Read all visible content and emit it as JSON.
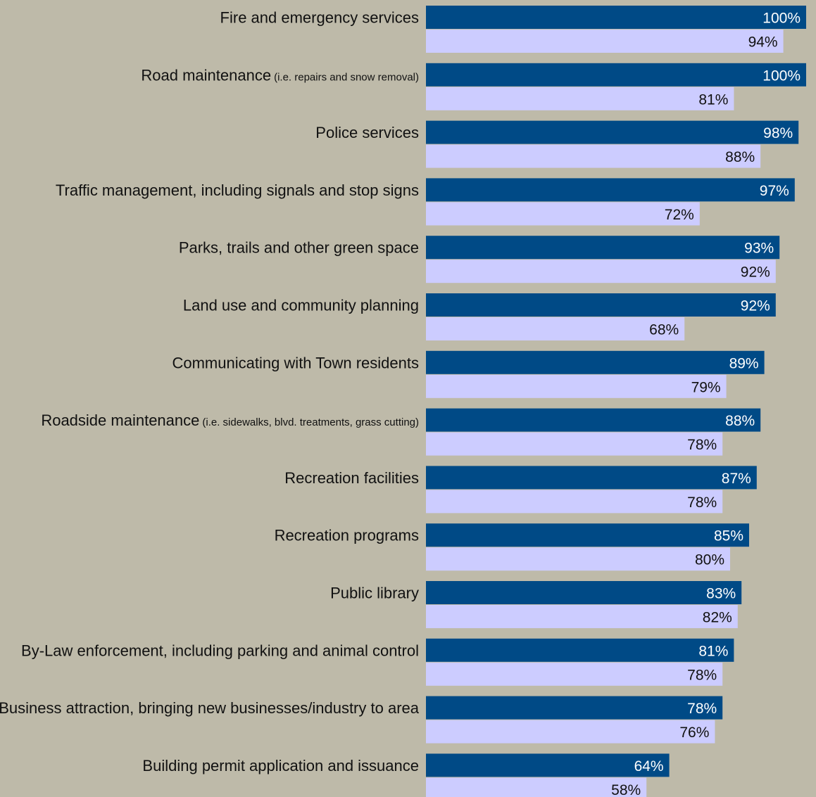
{
  "chart_data": {
    "type": "bar",
    "orientation": "horizontal",
    "title": "",
    "xlabel": "",
    "ylabel": "",
    "xlim": [
      0,
      100
    ],
    "grid": false,
    "legend": "none",
    "value_suffix": "%",
    "categories": [
      {
        "label": "Fire  and emergency services",
        "sub": ""
      },
      {
        "label": "Road maintenance",
        "sub": "(i.e. repairs and snow removal)"
      },
      {
        "label": "Police services",
        "sub": ""
      },
      {
        "label": "Traffic management, including signals and stop signs",
        "sub": ""
      },
      {
        "label": "Parks, trails and other  green space",
        "sub": ""
      },
      {
        "label": "Land use and community planning",
        "sub": ""
      },
      {
        "label": "Communicating with Town residents",
        "sub": ""
      },
      {
        "label": "Roadside maintenance",
        "sub": "(i.e. sidewalks, blvd. treatments, grass cutting)"
      },
      {
        "label": "Recreation  facilities",
        "sub": ""
      },
      {
        "label": "Recreation programs",
        "sub": ""
      },
      {
        "label": "Public  library",
        "sub": ""
      },
      {
        "label": "By-Law enforcement, including parking and animal control",
        "sub": ""
      },
      {
        "label": "Business attraction, bringing new businesses/industry to area",
        "sub": ""
      },
      {
        "label": "Building permit application and issuance",
        "sub": ""
      }
    ],
    "series": [
      {
        "color": "#004a86",
        "label_color": "#ffffff",
        "values": [
          100,
          100,
          98,
          97,
          93,
          92,
          89,
          88,
          87,
          85,
          83,
          81,
          78,
          64
        ]
      },
      {
        "color": "#ccccff",
        "label_color": "#111111",
        "values": [
          94,
          81,
          88,
          72,
          92,
          68,
          79,
          78,
          78,
          80,
          82,
          78,
          76,
          58
        ]
      }
    ]
  }
}
